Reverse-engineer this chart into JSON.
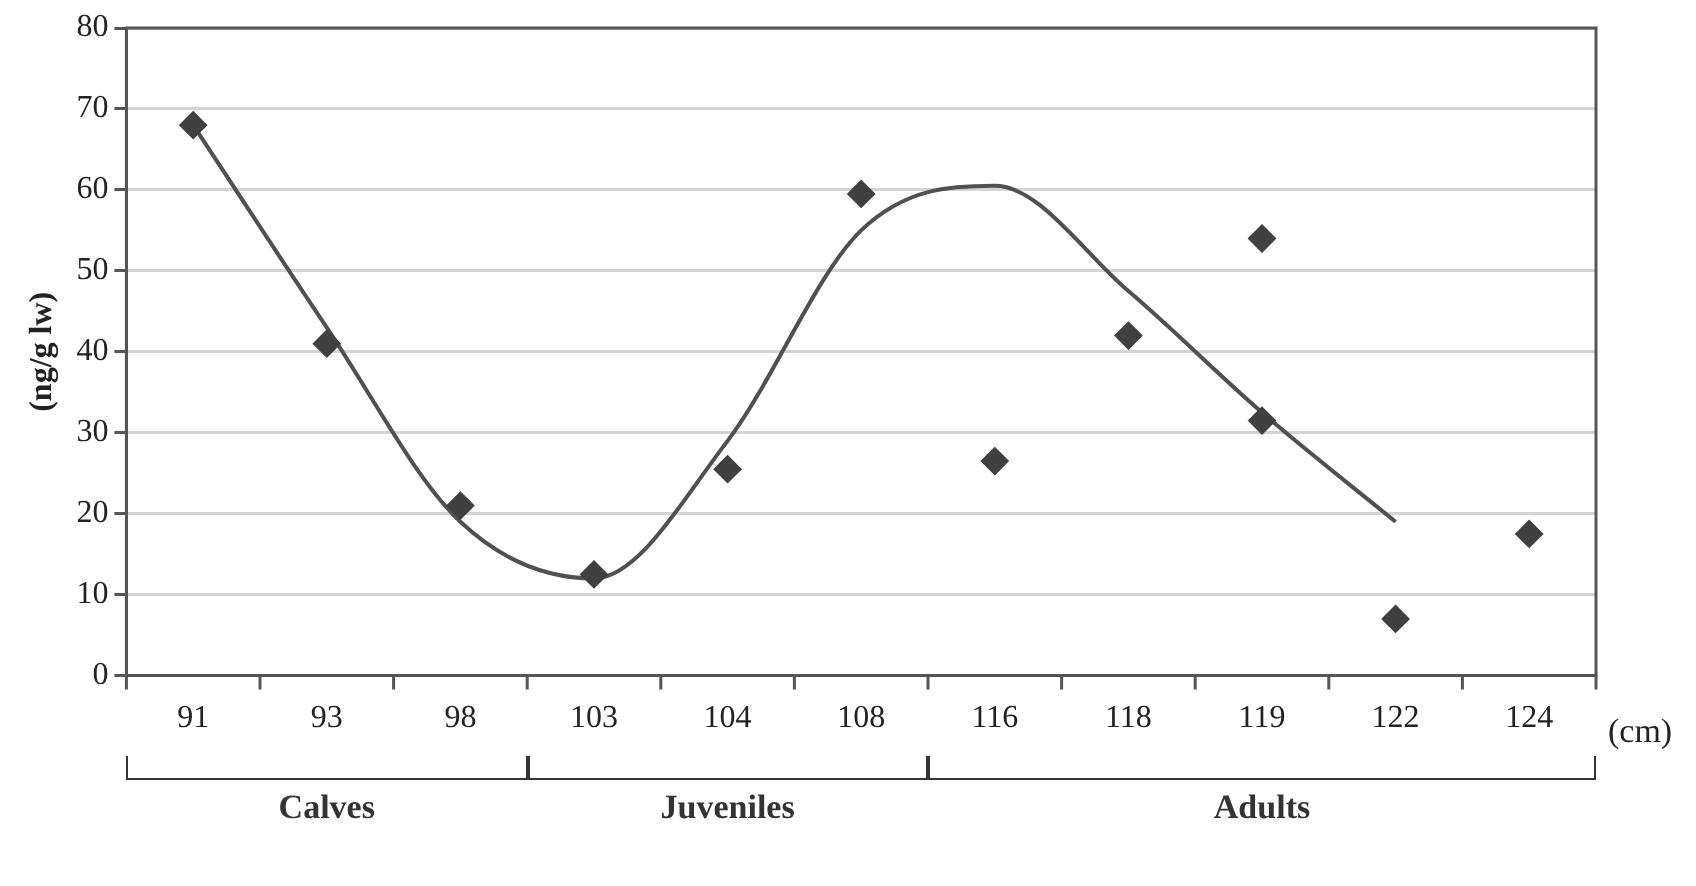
{
  "chart_data": {
    "type": "scatter",
    "ylabel": "(ng/g lw)",
    "categories": [
      "91",
      "93",
      "98",
      "103",
      "104",
      "108",
      "116",
      "118",
      "119",
      "122",
      "124"
    ],
    "series": [
      {
        "color": "#404040",
        "marker": "diamond",
        "x": [
          "91",
          "93",
          "98",
          "103",
          "104",
          "108",
          "116",
          "118",
          "119",
          "119",
          "122",
          "124"
        ],
        "values": [
          68,
          41,
          21,
          12.5,
          25.5,
          59.5,
          26.5,
          42,
          54,
          31.5,
          7,
          17.5
        ]
      },
      {
        "type": "line",
        "color": "#505050",
        "marker": "none",
        "line_style": "solid",
        "x": [
          "91",
          "93",
          "98",
          "103",
          "104",
          "108",
          "116",
          "118",
          "119",
          "122"
        ],
        "values": [
          68,
          43,
          19,
          12,
          29,
          55,
          60.5,
          47.5,
          32.5,
          19
        ]
      }
    ],
    "ylim": [
      0,
      80
    ],
    "yticks": [
      0,
      10,
      20,
      30,
      40,
      50,
      60,
      70,
      80
    ],
    "grid": "y",
    "legend": false,
    "annotations": [
      "(cm)",
      "Calves",
      "Juveniles",
      "Adults"
    ]
  }
}
